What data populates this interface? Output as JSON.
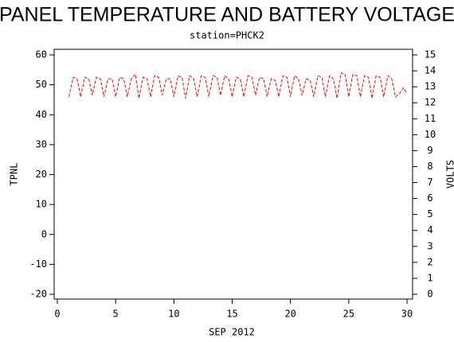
{
  "chart_data": {
    "type": "line",
    "title": "PANEL TEMPERATURE AND BATTERY VOLTAGE",
    "subtitle": "station=PHCK2",
    "x_label": "SEP 2012",
    "y_label": "TPNL",
    "y2_label": "VOLTS",
    "xlim": [
      0,
      30
    ],
    "xticks": [
      0,
      5,
      10,
      15,
      20,
      25,
      30
    ],
    "ylim": [
      -20,
      60
    ],
    "yticks": [
      -20,
      -10,
      0,
      10,
      20,
      30,
      40,
      50,
      60
    ],
    "y2lim": [
      0,
      15
    ],
    "y2ticks": [
      0,
      1,
      2,
      3,
      4,
      5,
      6,
      7,
      8,
      9,
      10,
      11,
      12,
      13,
      14,
      15
    ],
    "series": [
      {
        "color": "#ff0000",
        "dashed": true,
        "x": [
          1,
          1.35,
          1.7,
          2,
          2.35,
          2.7,
          3,
          3.35,
          3.7,
          4,
          4.35,
          4.7,
          5,
          5.35,
          5.7,
          6,
          6.35,
          6.7,
          7,
          7.35,
          7.7,
          8,
          8.35,
          8.7,
          9,
          9.35,
          9.7,
          10,
          10.35,
          10.7,
          11,
          11.35,
          11.7,
          12,
          12.35,
          12.7,
          13,
          13.35,
          13.7,
          14,
          14.35,
          14.7,
          15,
          15.35,
          15.7,
          16,
          16.35,
          16.7,
          17,
          17.35,
          17.7,
          18,
          18.35,
          18.7,
          19,
          19.35,
          19.7,
          20,
          20.35,
          20.7,
          21,
          21.35,
          21.7,
          22,
          22.35,
          22.7,
          23,
          23.35,
          23.7,
          24,
          24.35,
          24.7,
          25,
          25.35,
          25.7,
          26,
          26.35,
          26.7,
          27,
          27.35,
          27.7,
          28,
          28.35,
          28.7,
          29,
          29.35,
          29.7,
          30
        ],
        "values": [
          46,
          52.5,
          52,
          46,
          52.5,
          52,
          46.5,
          52.5,
          52,
          46,
          52,
          52,
          46,
          52.5,
          52,
          46,
          52,
          53.5,
          45.5,
          52.5,
          52,
          46,
          53,
          52.5,
          46.5,
          52,
          52,
          46,
          53,
          52.5,
          45.5,
          53,
          52,
          46,
          53,
          52.5,
          46,
          53,
          52.5,
          46.5,
          53,
          52,
          46,
          52.5,
          52,
          46,
          53,
          52.5,
          46.5,
          52.5,
          52,
          46,
          52,
          51.5,
          46,
          53,
          52.5,
          46,
          53,
          52,
          46.5,
          52,
          51.5,
          46,
          53,
          52.5,
          46,
          53,
          52,
          45.5,
          54,
          53.5,
          46,
          53.5,
          53,
          46,
          53,
          52.5,
          45.5,
          53,
          52.5,
          46,
          53,
          52,
          46,
          47,
          49,
          47
        ]
      }
    ]
  }
}
